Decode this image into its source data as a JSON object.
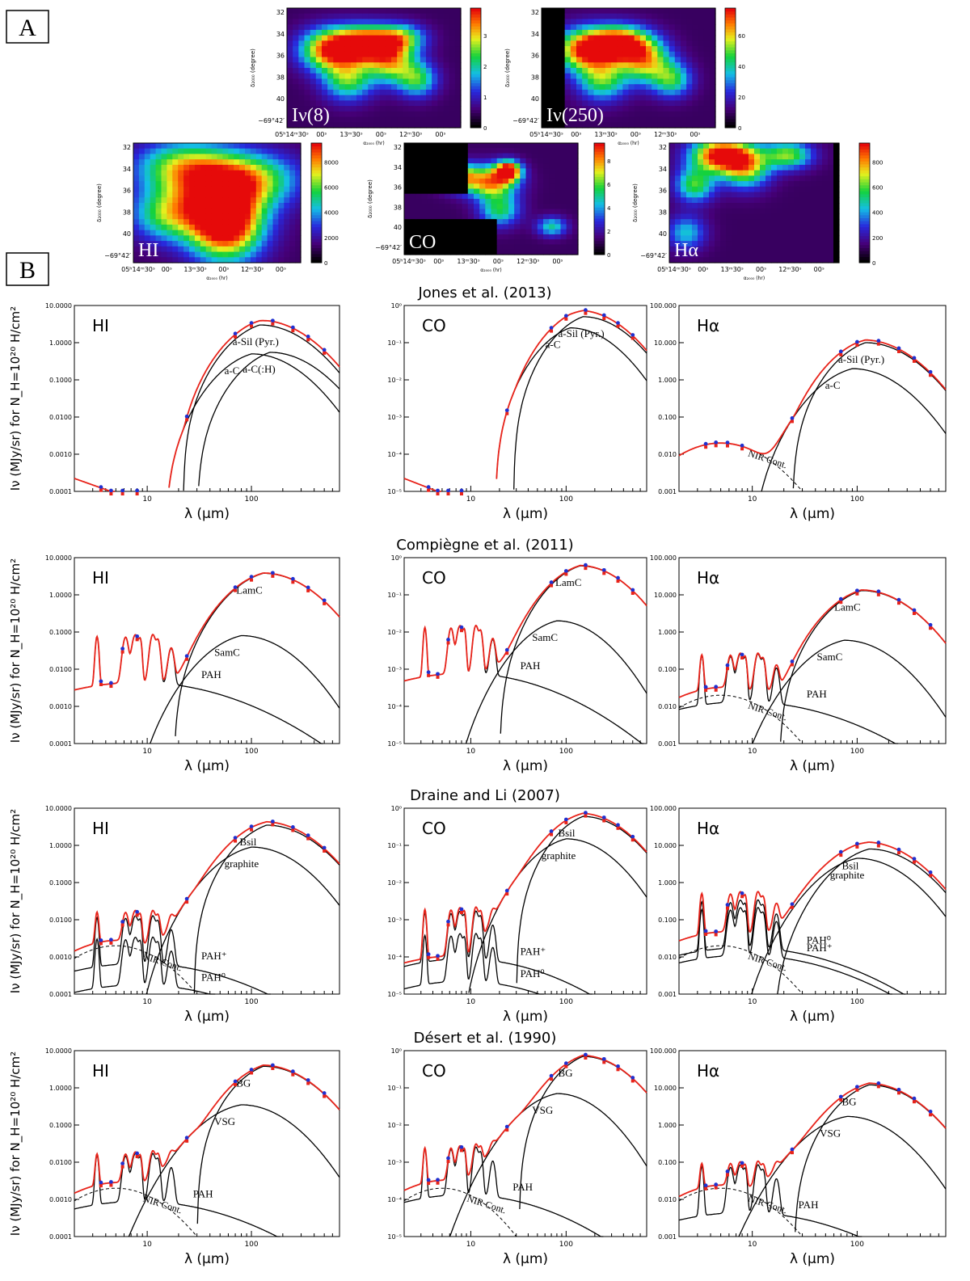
{
  "panel_labels": {
    "a": "A",
    "b": "B"
  },
  "maps": {
    "ra_ticks": [
      "05ʰ14ᵐ30ˢ",
      "00ˢ",
      "13ᵐ30ˢ",
      "00ˢ",
      "12ᵐ30ˢ",
      "00ˢ"
    ],
    "dec_ticks": [
      "32",
      "34",
      "36",
      "38",
      "40",
      "−69°42′"
    ],
    "xlabel": "α₂₀₀₀ (hr)",
    "ylabel": "δ₂₀₀₀ (degree)",
    "items": [
      {
        "label": "Iν(8)",
        "colorbar_ticks": [
          "0",
          "1",
          "2",
          "3"
        ],
        "colorbar_max": 3.9
      },
      {
        "label": "Iν(250)",
        "colorbar_ticks": [
          "0",
          "20",
          "40",
          "60"
        ],
        "colorbar_max": 78
      },
      {
        "label": "HI",
        "colorbar_ticks": [
          "0",
          "2000",
          "4000",
          "6000",
          "8000"
        ],
        "colorbar_max": 9500
      },
      {
        "label": "CO",
        "colorbar_ticks": [
          "0",
          "2",
          "4",
          "6",
          "8"
        ],
        "colorbar_max": 9.5
      },
      {
        "label": "Hα",
        "colorbar_ticks": [
          "0",
          "200",
          "400",
          "600",
          "800"
        ],
        "colorbar_max": 950
      }
    ]
  },
  "chart_data": {
    "type": "line",
    "xlabel": "λ (µm)",
    "ylabel": "Iν (MJy/sr) for N_H=10²⁰ H/cm²",
    "x_range": [
      2,
      700
    ],
    "x_scale": "log",
    "y_scale": "log",
    "x_ticks": [
      "10",
      "100"
    ],
    "columns": [
      {
        "tracer": "HI",
        "ylim": [
          0.0001,
          10
        ],
        "y_ticks": [
          "0.0001",
          "0.0010",
          "0.0100",
          "0.1000",
          "1.0000",
          "10.0000"
        ]
      },
      {
        "tracer": "CO",
        "ylim": [
          1e-05,
          1
        ],
        "y_ticks": [
          "10⁻⁵",
          "10⁻⁴",
          "10⁻³",
          "10⁻²",
          "10⁻¹",
          "10⁰"
        ]
      },
      {
        "tracer": "Hα",
        "ylim": [
          0.001,
          100
        ],
        "y_ticks": [
          "0.001",
          "0.010",
          "0.100",
          "1.000",
          "10.000",
          "100.000"
        ]
      }
    ],
    "rows": [
      {
        "model": "Jones et al. (2013)",
        "panels": [
          {
            "peak": 3.5,
            "components": [
              {
                "name": "a-Sil (Pyr.)",
                "peak": 3.0,
                "peak_x": 120,
                "cut_x": 22
              },
              {
                "name": "a-C(:H)",
                "peak": 0.55,
                "peak_x": 150,
                "cut_x": 30
              },
              {
                "name": "a-C",
                "peak": 0.5,
                "peak_x": 100,
                "cut_x": 15
              }
            ],
            "nir": false
          },
          {
            "peak": 0.65,
            "components": [
              {
                "name": "a-Sil (Pyr.)",
                "peak": 0.5,
                "peak_x": 150,
                "cut_x": 28
              },
              {
                "name": "a-C",
                "peak": 0.25,
                "peak_x": 110,
                "cut_x": 18
              }
            ],
            "nir": false
          },
          {
            "peak": 12,
            "components": [
              {
                "name": "a-Sil (Pyr.)",
                "peak": 10,
                "peak_x": 120,
                "cut_x": 24
              },
              {
                "name": "a-C",
                "peak": 2.0,
                "peak_x": 90,
                "cut_x": 10
              }
            ],
            "nir": true
          }
        ]
      },
      {
        "model": "Compiègne et al. (2011)",
        "panels": [
          {
            "peak": 4.0,
            "components": [
              {
                "name": "LamC",
                "peak": 3.8,
                "peak_x": 130,
                "cut_x": 18
              },
              {
                "name": "SamC",
                "peak": 0.08,
                "peak_x": 80,
                "cut_x": 7
              },
              {
                "name": "PAH",
                "peak": 0.02,
                "peak_x": 60,
                "cut_x": 0
              }
            ],
            "nir": false
          },
          {
            "peak": 0.65,
            "components": [
              {
                "name": "LamC",
                "peak": 0.6,
                "peak_x": 140,
                "cut_x": 20
              },
              {
                "name": "SamC",
                "peak": 0.02,
                "peak_x": 80,
                "cut_x": 6
              },
              {
                "name": "PAH",
                "peak": 0.0035,
                "peak_x": 60,
                "cut_x": 0
              }
            ],
            "nir": false
          },
          {
            "peak": 14,
            "components": [
              {
                "name": "LamC",
                "peak": 13,
                "peak_x": 110,
                "cut_x": 18
              },
              {
                "name": "SamC",
                "peak": 0.6,
                "peak_x": 75,
                "cut_x": 6
              },
              {
                "name": "PAH",
                "peak": 0.06,
                "peak_x": 60,
                "cut_x": 0
              }
            ],
            "nir": true
          }
        ]
      },
      {
        "model": "Draine and Li (2007)",
        "panels": [
          {
            "peak": 4.0,
            "components": [
              {
                "name": "Bsil",
                "peak": 3.5,
                "peak_x": 140,
                "cut_x": 28
              },
              {
                "name": "graphite",
                "peak": 0.9,
                "peak_x": 100,
                "cut_x": 8
              },
              {
                "name": "PAH⁺",
                "peak": 0.003,
                "peak_x": 60,
                "cut_x": 0
              },
              {
                "name": "PAH⁰",
                "peak": 0.0008,
                "peak_x": 60,
                "cut_x": 0
              }
            ],
            "nir": true
          },
          {
            "peak": 0.75,
            "components": [
              {
                "name": "Bsil",
                "peak": 0.6,
                "peak_x": 150,
                "cut_x": 30
              },
              {
                "name": "graphite",
                "peak": 0.15,
                "peak_x": 100,
                "cut_x": 8
              },
              {
                "name": "PAH⁺",
                "peak": 0.0004,
                "peak_x": 60,
                "cut_x": 0
              },
              {
                "name": "PAH⁰",
                "peak": 0.0001,
                "peak_x": 60,
                "cut_x": 0
              }
            ],
            "nir": false
          },
          {
            "peak": 12,
            "components": [
              {
                "name": "Bsil",
                "peak": 8,
                "peak_x": 130,
                "cut_x": 16
              },
              {
                "name": "graphite",
                "peak": 4.5,
                "peak_x": 100,
                "cut_x": 7
              },
              {
                "name": "PAH⁰",
                "peak": 0.08,
                "peak_x": 60,
                "cut_x": 0
              },
              {
                "name": "PAH⁺",
                "peak": 0.05,
                "peak_x": 60,
                "cut_x": 0
              }
            ],
            "nir": true
          }
        ]
      },
      {
        "model": "Désert et al. (1990)",
        "panels": [
          {
            "peak": 4.0,
            "components": [
              {
                "name": "BG",
                "peak": 3.8,
                "peak_x": 130,
                "cut_x": 30
              },
              {
                "name": "VSG",
                "peak": 0.35,
                "peak_x": 80,
                "cut_x": 3
              },
              {
                "name": "PAH",
                "peak": 0.004,
                "peak_x": 50,
                "cut_x": 0
              }
            ],
            "nir": true
          },
          {
            "peak": 0.75,
            "components": [
              {
                "name": "BG",
                "peak": 0.7,
                "peak_x": 150,
                "cut_x": 32
              },
              {
                "name": "VSG",
                "peak": 0.07,
                "peak_x": 80,
                "cut_x": 3
              },
              {
                "name": "PAH",
                "peak": 0.0006,
                "peak_x": 50,
                "cut_x": 0
              }
            ],
            "nir": true
          },
          {
            "peak": 13,
            "components": [
              {
                "name": "BG",
                "peak": 12,
                "peak_x": 130,
                "cut_x": 25
              },
              {
                "name": "VSG",
                "peak": 1.7,
                "peak_x": 80,
                "cut_x": 3
              },
              {
                "name": "PAH",
                "peak": 0.02,
                "peak_x": 50,
                "cut_x": 0
              }
            ],
            "nir": true
          }
        ]
      }
    ],
    "data_points_x": [
      3.6,
      4.5,
      5.8,
      8.0,
      24,
      70,
      100,
      160,
      250,
      350,
      500
    ],
    "nir_label": "NIR Cont.",
    "series_colors": {
      "model_total": "#e8231a",
      "component": "#000000",
      "data_blue": "#2030d0",
      "data_red": "#e8231a"
    }
  }
}
